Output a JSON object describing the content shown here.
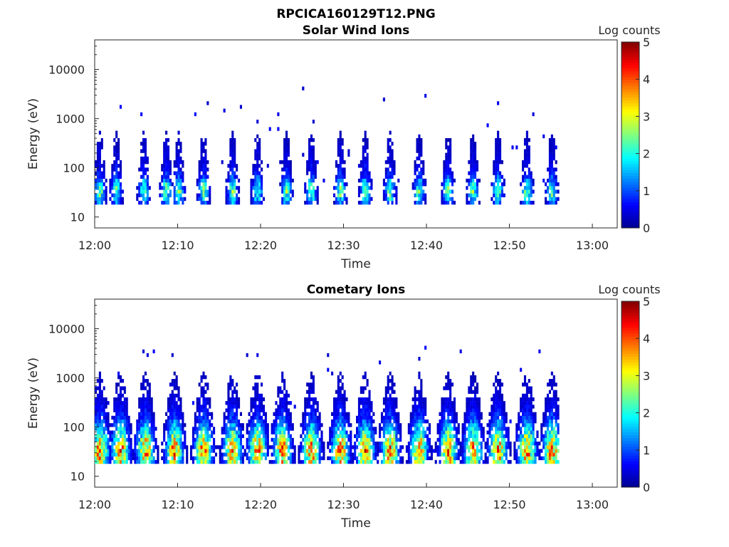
{
  "figure": {
    "title": "RPCICA160129T12.PNG"
  },
  "colorbar": {
    "label": "Log counts",
    "ticks": [
      "0",
      "1",
      "2",
      "3",
      "4",
      "5"
    ],
    "range": [
      0,
      5
    ],
    "colormap": [
      "#00008f",
      "#0000ff",
      "#0080ff",
      "#00ffff",
      "#80ff80",
      "#ffff00",
      "#ff8000",
      "#ff0000",
      "#800000"
    ]
  },
  "chart_data": [
    {
      "type": "heatmap",
      "title": "Solar Wind Ions",
      "xlabel": "Time",
      "ylabel": "Energy (eV)",
      "xticks": [
        "12:00",
        "12:10",
        "12:20",
        "12:30",
        "12:40",
        "12:50",
        "13:00"
      ],
      "yticks": [
        "10",
        "100",
        "1000",
        "10000"
      ],
      "xlim": [
        "12:00",
        "13:03"
      ],
      "ylim": [
        6,
        40000
      ],
      "yscale": "log",
      "colorbar_label": "Log counts",
      "colorbar_range": [
        0,
        5
      ],
      "data_end_time": "12:56",
      "bursts_minutes": [
        0.5,
        2.5,
        5.8,
        8.5,
        10.0,
        13.0,
        16.5,
        19.5,
        23.0,
        26.0,
        29.5,
        32.5,
        35.5,
        39.0,
        42.5,
        45.5,
        48.5,
        52.0,
        55.0
      ],
      "peak_energy_eV": 35,
      "peak_log_counts": 2.3
    },
    {
      "type": "heatmap",
      "title": "Cometary Ions",
      "xlabel": "Time",
      "ylabel": "Energy (eV)",
      "xticks": [
        "12:00",
        "12:10",
        "12:20",
        "12:30",
        "12:40",
        "12:50",
        "13:00"
      ],
      "yticks": [
        "10",
        "100",
        "1000",
        "10000"
      ],
      "xlim": [
        "12:00",
        "13:03"
      ],
      "ylim": [
        6,
        40000
      ],
      "yscale": "log",
      "colorbar_label": "Log counts",
      "colorbar_range": [
        0,
        5
      ],
      "data_end_time": "12:56",
      "bursts_minutes": [
        0.5,
        3.0,
        6.0,
        9.5,
        13.0,
        16.5,
        19.5,
        22.5,
        26.0,
        29.5,
        32.5,
        35.5,
        39.0,
        42.5,
        45.5,
        48.5,
        52.0,
        55.0
      ],
      "peak_energy_eV": 35,
      "peak_log_counts": 3.6
    }
  ]
}
